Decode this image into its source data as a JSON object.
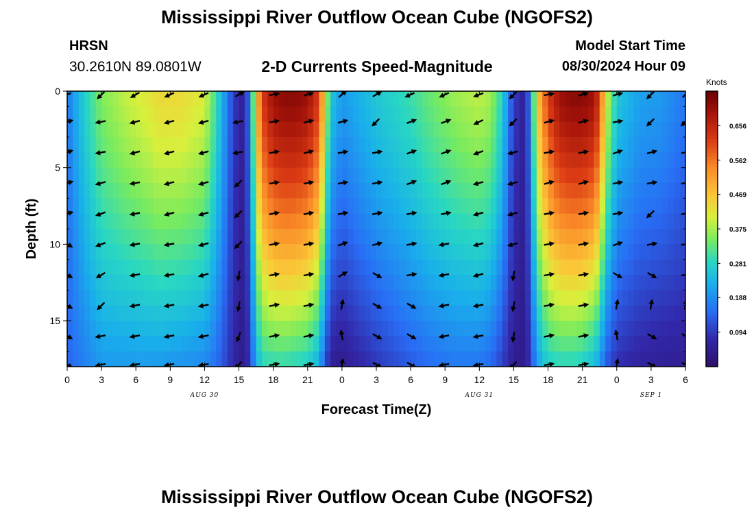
{
  "header": {
    "title": "Mississippi River Outflow Ocean Cube (NGOFS2)",
    "station": "HRSN",
    "coordinates": "30.2610N  89.0801W",
    "subtitle": "2-D Currents Speed-Magnitude",
    "start_label": "Model Start Time",
    "start_value": "08/30/2024 Hour 09"
  },
  "footer": {
    "title": "Mississippi River Outflow Ocean Cube (NGOFS2)"
  },
  "chart_data": {
    "type": "heatmap",
    "title": "2-D Currents Speed-Magnitude",
    "xlabel": "Forecast Time(Z)",
    "ylabel": "Depth (ft)",
    "x_hours_since_start": [
      0,
      54
    ],
    "x_tick_labels": [
      "0",
      "3",
      "6",
      "9",
      "12",
      "15",
      "18",
      "21",
      "0",
      "3",
      "6",
      "9",
      "12",
      "15",
      "18",
      "21",
      "0",
      "3",
      "6"
    ],
    "day_labels": [
      {
        "label": "AUG 30",
        "hour": 12
      },
      {
        "label": "AUG 31",
        "hour": 36
      },
      {
        "label": "SEP 1",
        "hour": 60
      }
    ],
    "ylim": [
      0,
      18
    ],
    "y_ticks": [
      0,
      5,
      10,
      15
    ],
    "colorbar": {
      "label": "Knots",
      "ticks": [
        0.094,
        0.188,
        0.281,
        0.375,
        0.469,
        0.562,
        0.656
      ],
      "range": [
        0.0,
        0.75
      ]
    },
    "speed_profile": {
      "hours": [
        0,
        1,
        2,
        3,
        5,
        7,
        8,
        10,
        12,
        13,
        14,
        14.5,
        15,
        15.5,
        16,
        16.5,
        17,
        18,
        19,
        20,
        21,
        22,
        22.5,
        23,
        24,
        25,
        27,
        30,
        32,
        34,
        36,
        37,
        38,
        38.5,
        39,
        39.5,
        40,
        40.5,
        41,
        42,
        43,
        44,
        45,
        46,
        46.5,
        47,
        48,
        50,
        52,
        54
      ],
      "surface": [
        0.16,
        0.24,
        0.3,
        0.35,
        0.39,
        0.42,
        0.44,
        0.44,
        0.41,
        0.3,
        0.17,
        0.1,
        0.07,
        0.05,
        0.2,
        0.45,
        0.62,
        0.7,
        0.72,
        0.72,
        0.7,
        0.62,
        0.42,
        0.26,
        0.2,
        0.22,
        0.26,
        0.3,
        0.34,
        0.37,
        0.39,
        0.37,
        0.28,
        0.18,
        0.1,
        0.07,
        0.05,
        0.2,
        0.45,
        0.62,
        0.7,
        0.72,
        0.72,
        0.7,
        0.62,
        0.42,
        0.26,
        0.21,
        0.2,
        0.16
      ],
      "bottom": [
        0.14,
        0.16,
        0.18,
        0.2,
        0.2,
        0.2,
        0.2,
        0.19,
        0.18,
        0.15,
        0.1,
        0.07,
        0.05,
        0.04,
        0.1,
        0.22,
        0.28,
        0.29,
        0.29,
        0.28,
        0.27,
        0.22,
        0.12,
        0.05,
        0.04,
        0.06,
        0.09,
        0.13,
        0.15,
        0.16,
        0.16,
        0.14,
        0.1,
        0.07,
        0.05,
        0.04,
        0.04,
        0.1,
        0.2,
        0.27,
        0.28,
        0.28,
        0.27,
        0.24,
        0.2,
        0.13,
        0.08,
        0.06,
        0.05,
        0.05
      ]
    },
    "arrows": {
      "depths": [
        0,
        2,
        4,
        6,
        8,
        10,
        12,
        14,
        16,
        18
      ],
      "hours": [
        0,
        3,
        6,
        9,
        12,
        15,
        18,
        21,
        24,
        27,
        30,
        33,
        36,
        39,
        42,
        45,
        48,
        51,
        54
      ],
      "direction_deg": [
        [
          200,
          225,
          210,
          205,
          205,
          30,
          10,
          15,
          40,
          30,
          205,
          205,
          200,
          225,
          10,
          15,
          15,
          225,
          45
        ],
        [
          15,
          190,
          195,
          195,
          195,
          190,
          10,
          15,
          15,
          225,
          20,
          20,
          205,
          225,
          15,
          15,
          10,
          225,
          225
        ],
        [
          20,
          190,
          195,
          195,
          195,
          190,
          10,
          15,
          10,
          10,
          20,
          20,
          200,
          195,
          10,
          10,
          20,
          15,
          10
        ],
        [
          15,
          195,
          190,
          195,
          195,
          225,
          10,
          10,
          10,
          10,
          20,
          20,
          195,
          195,
          15,
          15,
          10,
          10,
          10
        ],
        [
          15,
          200,
          190,
          195,
          195,
          225,
          10,
          10,
          10,
          10,
          10,
          10,
          195,
          195,
          10,
          10,
          10,
          225,
          10
        ],
        [
          330,
          200,
          190,
          190,
          195,
          225,
          10,
          10,
          20,
          15,
          10,
          190,
          195,
          195,
          10,
          10,
          20,
          10,
          10
        ],
        [
          330,
          210,
          190,
          190,
          195,
          260,
          10,
          10,
          30,
          330,
          10,
          190,
          195,
          260,
          10,
          10,
          330,
          330,
          10
        ],
        [
          330,
          225,
          190,
          190,
          190,
          260,
          10,
          10,
          80,
          330,
          330,
          190,
          190,
          260,
          10,
          10,
          80,
          80,
          80
        ],
        [
          330,
          190,
          190,
          190,
          190,
          250,
          10,
          10,
          100,
          330,
          330,
          190,
          190,
          260,
          10,
          10,
          100,
          330,
          330
        ],
        [
          330,
          190,
          190,
          190,
          190,
          225,
          10,
          10,
          80,
          330,
          330,
          190,
          190,
          225,
          10,
          10,
          80,
          330,
          330
        ]
      ]
    }
  }
}
